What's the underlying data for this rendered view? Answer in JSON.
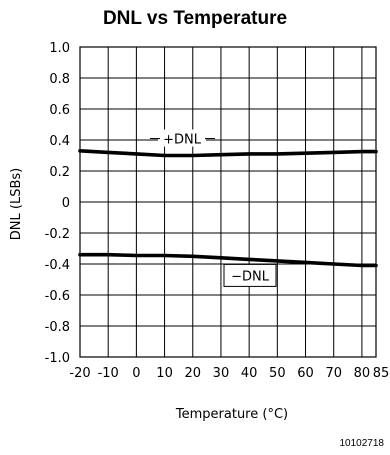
{
  "chart_data": {
    "type": "line",
    "title": "DNL vs Temperature",
    "xlabel": "Temperature (°C)",
    "ylabel": "DNL (LSBs)",
    "xlim": [
      -20,
      85
    ],
    "ylim": [
      -1.0,
      1.0
    ],
    "grid": true,
    "x_ticks": [
      -20,
      -10,
      0,
      10,
      20,
      30,
      40,
      50,
      60,
      70,
      80,
      85
    ],
    "x_tick_labels": [
      "-20",
      "-10",
      "0",
      "10",
      "20",
      "30",
      "40",
      "50",
      "60",
      "70",
      "80",
      "85"
    ],
    "y_ticks": [
      1.0,
      0.8,
      0.6,
      0.4,
      0.2,
      0,
      -0.2,
      -0.4,
      -0.6,
      -0.8,
      -1.0
    ],
    "y_tick_labels": [
      "1.0",
      "0.8",
      "0.6",
      "0.4",
      "0.2",
      "0",
      "-0.2",
      "-0.4",
      "-0.6",
      "-0.8",
      "-1.0"
    ],
    "series": [
      {
        "name": "+DNL",
        "x": [
          -20,
          -10,
          0,
          10,
          20,
          30,
          40,
          50,
          60,
          70,
          80,
          85
        ],
        "y": [
          0.33,
          0.32,
          0.31,
          0.3,
          0.3,
          0.305,
          0.31,
          0.31,
          0.315,
          0.32,
          0.325,
          0.325
        ]
      },
      {
        "name": "−DNL",
        "x": [
          -20,
          -10,
          0,
          10,
          20,
          30,
          40,
          50,
          60,
          70,
          80,
          85
        ],
        "y": [
          -0.34,
          -0.34,
          -0.345,
          -0.345,
          -0.35,
          -0.36,
          -0.37,
          -0.38,
          -0.39,
          -0.4,
          -0.41,
          -0.41
        ]
      }
    ],
    "annotations": [
      {
        "text": "+DNL",
        "series": 0
      },
      {
        "text": "−DNL",
        "series": 1
      }
    ],
    "figure_id": "10102718"
  }
}
